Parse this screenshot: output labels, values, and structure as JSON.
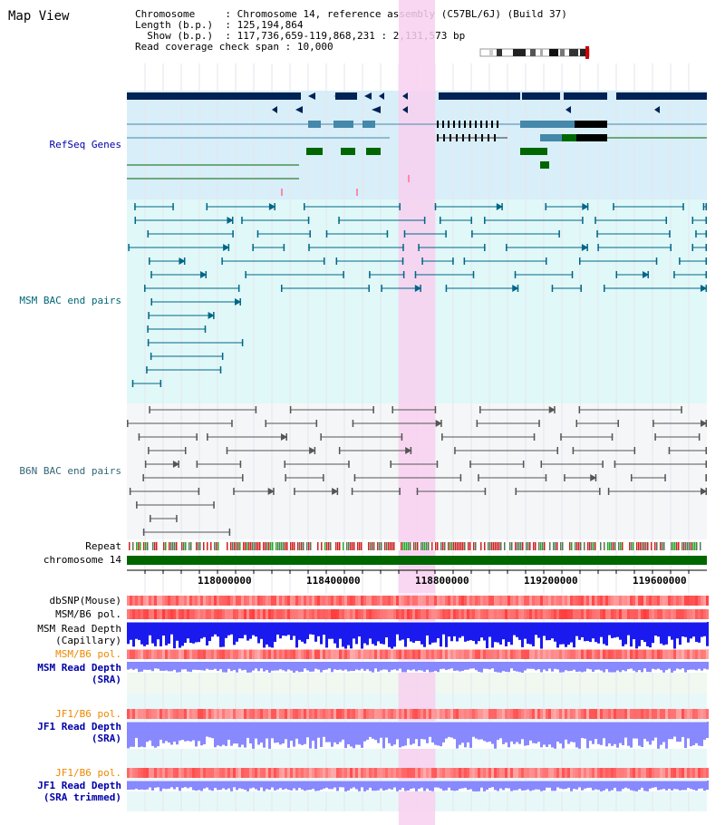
{
  "app": {
    "title": "Map View"
  },
  "header": {
    "chromosome_key": "Chromosome",
    "chromosome_value": "Chromosome 14, reference assembly (C57BL/6J) (Build 37)",
    "length_key": "Length (b.p.)",
    "length_value": "125,194,864",
    "show_key": "Show (b.p.)",
    "show_value": "117,736,659-119,868,231 : 2,131,573 bp",
    "coverage_key": "Read coverage check span",
    "coverage_value": "10,000"
  },
  "tracks": {
    "refseq": {
      "label": "RefSeq Genes",
      "color": "#0000cc"
    },
    "msm_bac": {
      "label": "MSM BAC end pairs",
      "color": "#006688"
    },
    "b6n_bac": {
      "label": "B6N BAC end pairs",
      "color": "#336677"
    },
    "repeat": {
      "label": "Repeat"
    },
    "chromosome": {
      "label": "chromosome 14"
    },
    "dbsnp": {
      "label": "dbSNP(Mouse)"
    },
    "msm_b6_pol": {
      "label": "MSM/B6 pol."
    },
    "msm_read_depth_cap": {
      "label": "MSM Read Depth",
      "sublabel": "(Capillary)"
    },
    "msm_b6_pol2": {
      "label": "MSM/B6 pol."
    },
    "msm_read_depth_sra": {
      "label": "MSM Read Depth",
      "sublabel": "(SRA)"
    },
    "jf1_b6_pol": {
      "label": "JF1/B6 pol."
    },
    "jf1_read_depth_sra": {
      "label": "JF1 Read Depth",
      "sublabel": "(SRA)"
    },
    "jf1_b6_pol2": {
      "label": "JF1/B6 pol."
    },
    "jf1_read_depth_trim": {
      "label": "JF1 Read Depth",
      "sublabel": "(SRA trimmed)"
    }
  },
  "axis": {
    "ticks": [
      "118000000",
      "118400000",
      "118800000",
      "119200000",
      "119600000"
    ]
  },
  "colors": {
    "highlight": "#f8d0f0",
    "refseq_bg": "#d8eef8",
    "msm_bg": "#e0f8f8",
    "b6n_bg": "#f4f6f8",
    "navy": "#002255",
    "gene_teal": "#4488aa",
    "gene_green": "#006600",
    "msm_line": "#006688",
    "b6n_line": "#555555",
    "chrom_green": "#006600",
    "snp_red": "#ff6666",
    "depth_blue": "#1a1aee",
    "sra_blue": "#8888ff",
    "label_blue": "#0000aa",
    "label_orange": "#ee8800",
    "label_teal": "#006677"
  }
}
